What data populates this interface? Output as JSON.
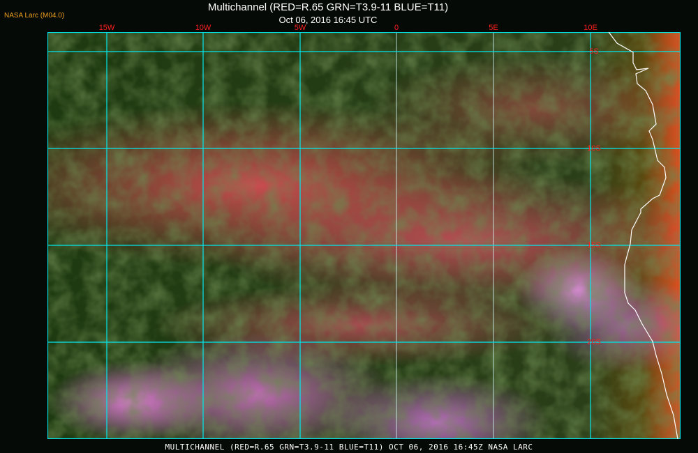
{
  "header": {
    "org_label": "NASA Larc (M04.0)",
    "title": "Multichannel (RED=R.65 GRN=T3.9-11 BLUE=T11)",
    "subtitle": "Oct 06, 2016 16:45 UTC"
  },
  "map": {
    "longitude_labels": [
      "15W",
      "10W",
      "5W",
      "0",
      "5E",
      "10E"
    ],
    "latitude_labels": [
      "5S",
      "10S",
      "15S",
      "20S"
    ],
    "grid_color": "#00e8f0",
    "label_color": "#ff2020",
    "coastline_color": "#ffffff"
  },
  "footer": {
    "caption": "MULTICHANNEL (RED=R.65 GRN=T3.9-11 BLUE=T11) OCT 06, 2016 16:45Z   NASA LARC"
  }
}
